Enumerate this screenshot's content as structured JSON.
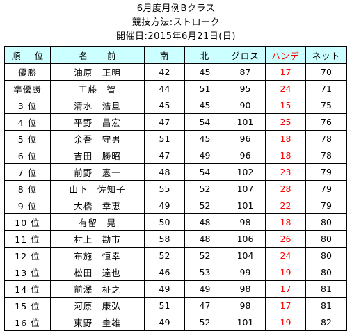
{
  "header": {
    "title": "6月度月例Bクラス",
    "competition_method": "競技方法:ストローク",
    "date": "開催日:2015年6月21日(日)"
  },
  "table": {
    "columns": [
      "順 位",
      "名 前",
      "南",
      "北",
      "グロス",
      "ハンデ",
      "ネット"
    ],
    "rows": [
      {
        "rank": "優勝",
        "name": "油原　正明",
        "south": "42",
        "north": "45",
        "gross": "87",
        "handicap": "17",
        "net": "70"
      },
      {
        "rank": "準優勝",
        "name": "工藤　智",
        "south": "44",
        "north": "51",
        "gross": "95",
        "handicap": "24",
        "net": "71"
      },
      {
        "rank": "3 位",
        "name": "清水　浩旦",
        "south": "45",
        "north": "45",
        "gross": "90",
        "handicap": "15",
        "net": "75"
      },
      {
        "rank": "4 位",
        "name": "平野　昌宏",
        "south": "47",
        "north": "54",
        "gross": "101",
        "handicap": "25",
        "net": "76"
      },
      {
        "rank": "5 位",
        "name": "余吾　守男",
        "south": "51",
        "north": "45",
        "gross": "96",
        "handicap": "18",
        "net": "78"
      },
      {
        "rank": "6 位",
        "name": "吉田　勝昭",
        "south": "47",
        "north": "49",
        "gross": "96",
        "handicap": "18",
        "net": "78"
      },
      {
        "rank": "7 位",
        "name": "前野　憲一",
        "south": "48",
        "north": "54",
        "gross": "102",
        "handicap": "23",
        "net": "79"
      },
      {
        "rank": "8 位",
        "name": "山下　佐知子",
        "south": "55",
        "north": "52",
        "gross": "107",
        "handicap": "28",
        "net": "79"
      },
      {
        "rank": "9 位",
        "name": "大橋　幸恵",
        "south": "49",
        "north": "52",
        "gross": "101",
        "handicap": "22",
        "net": "79"
      },
      {
        "rank": "10 位",
        "name": "有留　晃",
        "south": "50",
        "north": "48",
        "gross": "98",
        "handicap": "18",
        "net": "80"
      },
      {
        "rank": "11 位",
        "name": "村上　勘市",
        "south": "58",
        "north": "48",
        "gross": "106",
        "handicap": "26",
        "net": "80"
      },
      {
        "rank": "12 位",
        "name": "布施　恒幸",
        "south": "52",
        "north": "52",
        "gross": "104",
        "handicap": "24",
        "net": "80"
      },
      {
        "rank": "13 位",
        "name": "松田　達也",
        "south": "46",
        "north": "53",
        "gross": "99",
        "handicap": "19",
        "net": "80"
      },
      {
        "rank": "14 位",
        "name": "前澤　柾之",
        "south": "49",
        "north": "49",
        "gross": "98",
        "handicap": "17",
        "net": "81"
      },
      {
        "rank": "15 位",
        "name": "河原　康弘",
        "south": "51",
        "north": "47",
        "gross": "98",
        "handicap": "17",
        "net": "81"
      },
      {
        "rank": "16 位",
        "name": "東野　圭雄",
        "south": "49",
        "north": "52",
        "gross": "101",
        "handicap": "19",
        "net": "82"
      }
    ]
  },
  "colors": {
    "header_background": "#ccffff",
    "handicap_text": "#ff0000",
    "border": "#000000"
  }
}
